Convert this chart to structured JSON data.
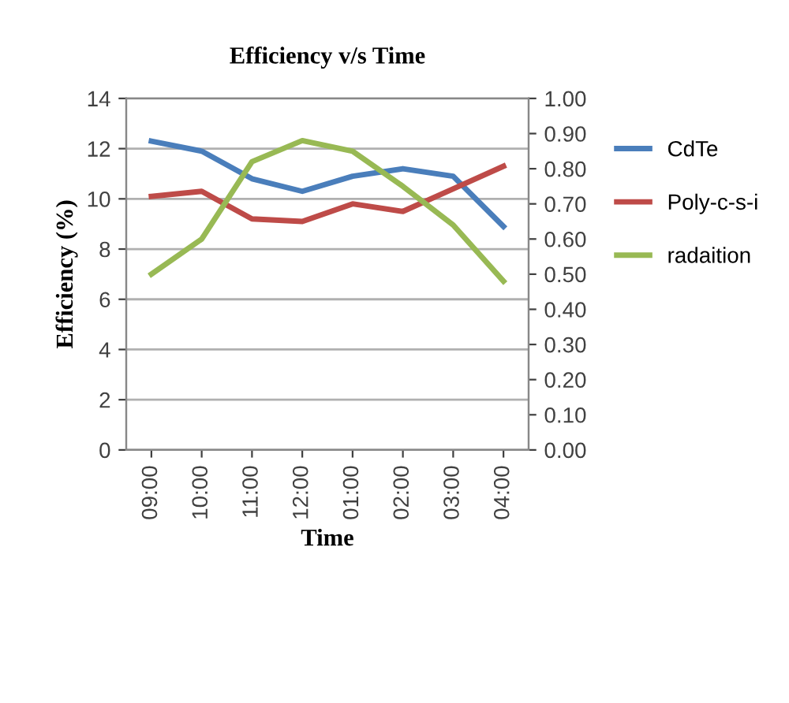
{
  "chart_data": {
    "type": "line",
    "title": "Efficiency v/s Time",
    "xlabel": "Time",
    "ylabel": "Efficiency (%)",
    "categories": [
      "09:00",
      "10:00",
      "11:00",
      "12:00",
      "01:00",
      "02:00",
      "03:00",
      "04:00"
    ],
    "series": [
      {
        "name": "CdTe",
        "color": "#4a7ebb",
        "values": [
          12.3,
          11.9,
          10.8,
          10.3,
          10.9,
          11.2,
          10.9,
          8.9
        ]
      },
      {
        "name": "Poly-c-s-i",
        "color": "#be4b48",
        "values": [
          10.1,
          10.3,
          9.2,
          9.1,
          9.8,
          9.5,
          10.4,
          11.3
        ]
      },
      {
        "name": "radaition",
        "color": "#98b954",
        "axis": "y2",
        "values": [
          0.5,
          0.6,
          0.82,
          0.88,
          0.85,
          0.75,
          0.64,
          0.48
        ]
      }
    ],
    "ylim": [
      0,
      14
    ],
    "yticks": [
      0,
      2,
      4,
      6,
      8,
      10,
      12,
      14
    ],
    "y2lim": [
      0,
      1
    ],
    "y2ticks": [
      {
        "value": 0,
        "label": "0.00"
      },
      {
        "value": 0.1,
        "label": "0.10"
      },
      {
        "value": 0.2,
        "label": "0.20"
      },
      {
        "value": 0.3,
        "label": "0.30"
      },
      {
        "value": 0.4,
        "label": "0.40"
      },
      {
        "value": 0.5,
        "label": "0.50"
      },
      {
        "value": 0.6,
        "label": "0.60"
      },
      {
        "value": 0.7,
        "label": "0.70"
      },
      {
        "value": 0.8,
        "label": "0.80"
      },
      {
        "value": 0.9,
        "label": "0.90"
      },
      {
        "value": 1,
        "label": "1.00"
      }
    ],
    "grid": "y",
    "legend": "right",
    "marker": "none",
    "line_style": "solid"
  }
}
